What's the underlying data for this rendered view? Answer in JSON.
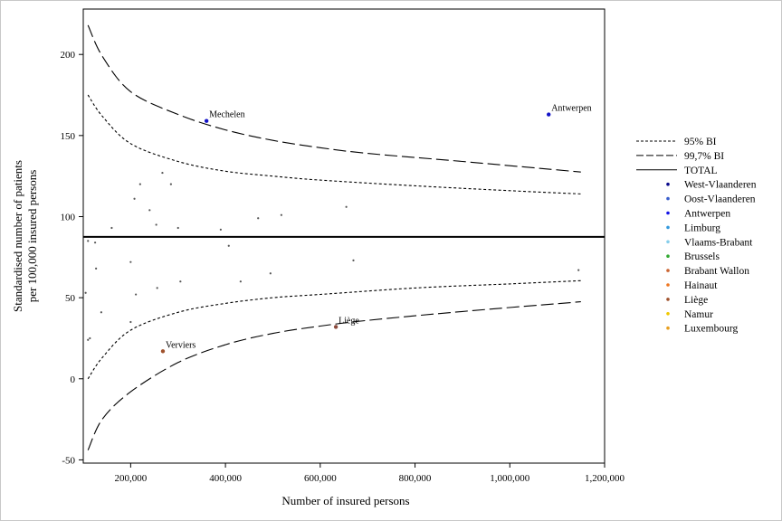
{
  "chart_data": {
    "type": "scatter",
    "xlabel": "Number of insured persons",
    "ylabel": "Standardised number of patients per 100,000 insured persons",
    "ylabel_lines": [
      "Standardised number of patients",
      "per 100,000 insured persons"
    ],
    "xlim": [
      100000,
      1200000
    ],
    "ylim": [
      -52,
      228
    ],
    "x_ticks": [
      200000,
      400000,
      600000,
      800000,
      1000000,
      1200000
    ],
    "x_tick_labels": [
      "200,000",
      "400,000",
      "600,000",
      "800,000",
      "1,000,000",
      "1,200,000"
    ],
    "y_ticks": [
      -50,
      0,
      50,
      100,
      150,
      200
    ],
    "y_tick_labels": [
      "-50",
      "0",
      "50",
      "100",
      "150",
      "200"
    ],
    "total_rate": 87.5,
    "ci_curves": [
      {
        "name": "95% BI",
        "style": "dotted",
        "upper": [
          [
            110000,
            175
          ],
          [
            140000,
            162
          ],
          [
            200000,
            145
          ],
          [
            300000,
            134
          ],
          [
            400000,
            128
          ],
          [
            500000,
            125
          ],
          [
            600000,
            122.5
          ],
          [
            800000,
            119
          ],
          [
            1000000,
            116
          ],
          [
            1150000,
            114
          ]
        ],
        "lower": [
          [
            110000,
            0
          ],
          [
            140000,
            13
          ],
          [
            200000,
            30
          ],
          [
            300000,
            41
          ],
          [
            400000,
            46.5
          ],
          [
            500000,
            50
          ],
          [
            600000,
            52
          ],
          [
            800000,
            56
          ],
          [
            1000000,
            58.5
          ],
          [
            1150000,
            60.5
          ]
        ]
      },
      {
        "name": "99,7% BI",
        "style": "dashed",
        "upper": [
          [
            110000,
            218
          ],
          [
            140000,
            199
          ],
          [
            200000,
            177
          ],
          [
            300000,
            163
          ],
          [
            400000,
            153.5
          ],
          [
            500000,
            147
          ],
          [
            600000,
            142.5
          ],
          [
            700000,
            139
          ],
          [
            900000,
            134
          ],
          [
            1150000,
            127.5
          ]
        ],
        "lower": [
          [
            110000,
            -44
          ],
          [
            140000,
            -25
          ],
          [
            200000,
            -8
          ],
          [
            300000,
            10
          ],
          [
            400000,
            21
          ],
          [
            500000,
            28
          ],
          [
            600000,
            32.5
          ],
          [
            700000,
            36
          ],
          [
            900000,
            41.5
          ],
          [
            1150000,
            47.5
          ]
        ]
      }
    ],
    "points": [
      {
        "x": 360000,
        "y": 159,
        "label": "Mechelen",
        "region": "Antwerpen",
        "color": "#1414c8"
      },
      {
        "x": 1082000,
        "y": 163,
        "label": "Antwerpen",
        "region": "Antwerpen",
        "color": "#1414c8"
      },
      {
        "x": 633000,
        "y": 32,
        "label": "Liège",
        "region": "Liège",
        "color": "#8b4a3c"
      },
      {
        "x": 268000,
        "y": 17,
        "label": "Verviers",
        "region": "Liège",
        "color": "#a0522d"
      },
      {
        "x": 105000,
        "y": 53,
        "color": "#555555"
      },
      {
        "x": 110000,
        "y": 85,
        "color": "#555555"
      },
      {
        "x": 125000,
        "y": 84,
        "color": "#555555"
      },
      {
        "x": 127000,
        "y": 68,
        "color": "#555555"
      },
      {
        "x": 110000,
        "y": 24,
        "color": "#555555"
      },
      {
        "x": 114000,
        "y": 25,
        "color": "#555555"
      },
      {
        "x": 138000,
        "y": 41,
        "color": "#555555"
      },
      {
        "x": 160000,
        "y": 93,
        "color": "#555555"
      },
      {
        "x": 200000,
        "y": 72,
        "color": "#555555"
      },
      {
        "x": 200000,
        "y": 35,
        "color": "#555555"
      },
      {
        "x": 208000,
        "y": 111,
        "color": "#555555"
      },
      {
        "x": 211000,
        "y": 52,
        "color": "#555555"
      },
      {
        "x": 220000,
        "y": 120,
        "color": "#555555"
      },
      {
        "x": 240000,
        "y": 104,
        "color": "#555555"
      },
      {
        "x": 254000,
        "y": 95,
        "color": "#555555"
      },
      {
        "x": 256000,
        "y": 56,
        "color": "#555555"
      },
      {
        "x": 267000,
        "y": 127,
        "color": "#555555"
      },
      {
        "x": 285000,
        "y": 120,
        "color": "#555555"
      },
      {
        "x": 300000,
        "y": 93,
        "color": "#555555"
      },
      {
        "x": 305000,
        "y": 60,
        "color": "#555555"
      },
      {
        "x": 390000,
        "y": 92,
        "color": "#555555"
      },
      {
        "x": 407000,
        "y": 82,
        "color": "#555555"
      },
      {
        "x": 432000,
        "y": 60,
        "color": "#555555"
      },
      {
        "x": 469000,
        "y": 99,
        "color": "#555555"
      },
      {
        "x": 495000,
        "y": 65,
        "color": "#555555"
      },
      {
        "x": 518000,
        "y": 101,
        "color": "#555555"
      },
      {
        "x": 655000,
        "y": 106,
        "color": "#555555"
      },
      {
        "x": 670000,
        "y": 73,
        "color": "#555555"
      },
      {
        "x": 1145000,
        "y": 67,
        "color": "#555555"
      }
    ],
    "legend_position": "right",
    "legend": [
      {
        "label": "95% BI",
        "kind": "dotted"
      },
      {
        "label": "99,7% BI",
        "kind": "dashed"
      },
      {
        "label": "TOTAL",
        "kind": "solid"
      },
      {
        "label": "West-Vlaanderen",
        "kind": "dot",
        "color": "#0a0a8c"
      },
      {
        "label": "Oost-Vlaanderen",
        "kind": "dot",
        "color": "#3a5fcd"
      },
      {
        "label": "Antwerpen",
        "kind": "dot",
        "color": "#1414e6"
      },
      {
        "label": "Limburg",
        "kind": "dot",
        "color": "#3399dd"
      },
      {
        "label": "Vlaams-Brabant",
        "kind": "dot",
        "color": "#87ceeb"
      },
      {
        "label": "Brussels",
        "kind": "dot",
        "color": "#33aa33"
      },
      {
        "label": "Brabant Wallon",
        "kind": "dot",
        "color": "#cc6633"
      },
      {
        "label": "Hainaut",
        "kind": "dot",
        "color": "#ee7722"
      },
      {
        "label": "Liège",
        "kind": "dot",
        "color": "#a0522d"
      },
      {
        "label": "Namur",
        "kind": "dot",
        "color": "#f0c800"
      },
      {
        "label": "Luxembourg",
        "kind": "dot",
        "color": "#e8a020"
      }
    ]
  }
}
